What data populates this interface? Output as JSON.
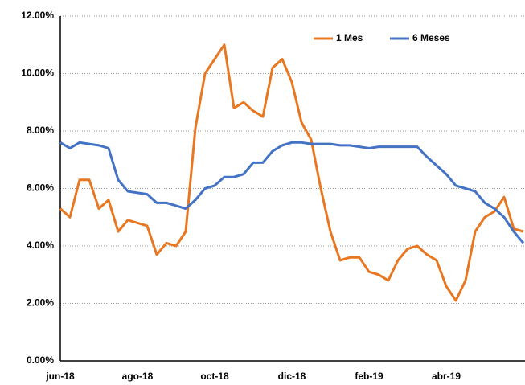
{
  "chart_data": {
    "type": "line",
    "categories": [
      "jun-18",
      null,
      null,
      null,
      null,
      null,
      null,
      null,
      "ago-18",
      null,
      null,
      null,
      null,
      null,
      null,
      null,
      "oct-18",
      null,
      null,
      null,
      null,
      null,
      null,
      null,
      "dic-18",
      null,
      null,
      null,
      null,
      null,
      null,
      null,
      "feb-19",
      null,
      null,
      null,
      null,
      null,
      null,
      null,
      "abr-19",
      null,
      null,
      null,
      null,
      null,
      null,
      null,
      null
    ],
    "series": [
      {
        "name": "1 Mes",
        "color": "#e87722",
        "values": [
          5.3,
          5.0,
          6.3,
          6.3,
          5.3,
          5.6,
          4.5,
          4.9,
          4.8,
          4.7,
          3.7,
          4.1,
          4.0,
          4.5,
          8.1,
          10.0,
          10.5,
          11.0,
          8.8,
          9.0,
          8.7,
          8.5,
          10.2,
          10.5,
          9.7,
          8.3,
          7.7,
          6.0,
          4.5,
          3.5,
          3.6,
          3.6,
          3.1,
          3.0,
          2.8,
          3.5,
          3.9,
          4.0,
          3.7,
          3.5,
          2.6,
          2.1,
          2.8,
          4.5,
          5.0,
          5.2,
          5.7,
          4.6,
          4.5
        ]
      },
      {
        "name": "6 Meses",
        "color": "#4472c4",
        "values": [
          7.6,
          7.4,
          7.6,
          7.55,
          7.5,
          7.4,
          6.3,
          5.9,
          5.85,
          5.8,
          5.5,
          5.5,
          5.4,
          5.3,
          5.6,
          6.0,
          6.1,
          6.4,
          6.4,
          6.5,
          6.9,
          6.9,
          7.3,
          7.5,
          7.6,
          7.6,
          7.55,
          7.55,
          7.55,
          7.5,
          7.5,
          7.45,
          7.4,
          7.45,
          7.45,
          7.45,
          7.45,
          7.45,
          7.1,
          6.8,
          6.5,
          6.1,
          6.0,
          5.9,
          5.5,
          5.3,
          5.0,
          4.5,
          4.1
        ]
      }
    ],
    "ylim": [
      0,
      12
    ],
    "yticks": [
      {
        "value": 0,
        "label": "0.00%"
      },
      {
        "value": 2,
        "label": "2.00%"
      },
      {
        "value": 4,
        "label": "4.00%"
      },
      {
        "value": 6,
        "label": "6.00%"
      },
      {
        "value": 8,
        "label": "8.00%"
      },
      {
        "value": 10,
        "label": "10.00%"
      },
      {
        "value": 12,
        "label": "12.00%"
      }
    ],
    "grid": true,
    "legend": "upper right"
  }
}
